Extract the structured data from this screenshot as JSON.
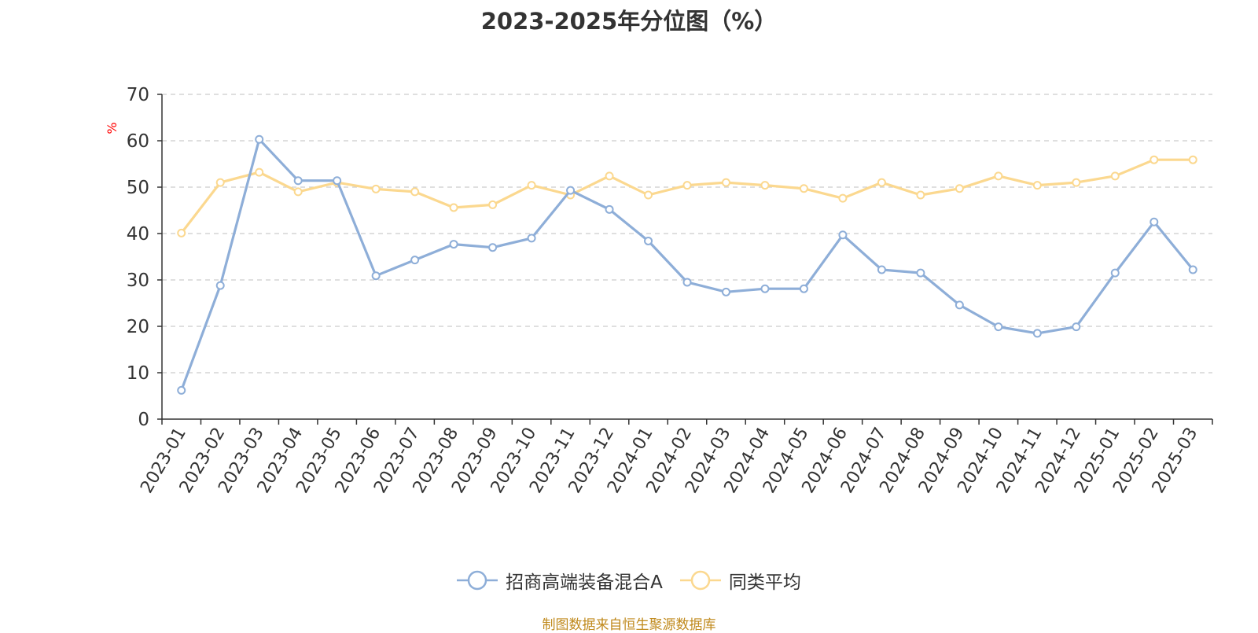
{
  "chart_data": {
    "type": "line",
    "title": "2023-2025年分位图（%）",
    "ylabel": "%",
    "ylim": [
      0,
      70
    ],
    "yticks": [
      0,
      10,
      20,
      30,
      40,
      50,
      60,
      70
    ],
    "grid": true,
    "legend_position": "bottom-center",
    "categories": [
      "2023-01",
      "2023-02",
      "2023-03",
      "2023-04",
      "2023-05",
      "2023-06",
      "2023-07",
      "2023-08",
      "2023-09",
      "2023-10",
      "2023-11",
      "2023-12",
      "2024-01",
      "2024-02",
      "2024-03",
      "2024-04",
      "2024-05",
      "2024-06",
      "2024-07",
      "2024-08",
      "2024-09",
      "2024-10",
      "2024-11",
      "2024-12",
      "2025-01",
      "2025-02",
      "2025-03"
    ],
    "series": [
      {
        "name": "招商高端装备混合A",
        "color": "#8eaed8",
        "values": [
          6.2,
          28.8,
          60.3,
          51.4,
          51.4,
          30.9,
          34.3,
          37.7,
          37.0,
          39.0,
          49.3,
          45.2,
          38.4,
          29.5,
          27.4,
          28.1,
          28.1,
          39.7,
          32.2,
          31.5,
          24.6,
          19.9,
          18.5,
          19.9,
          31.5,
          42.5,
          32.2
        ]
      },
      {
        "name": "同类平均",
        "color": "#fbd88f",
        "values": [
          40.1,
          51.0,
          53.2,
          49.0,
          51.0,
          49.6,
          49.0,
          45.6,
          46.2,
          50.4,
          48.3,
          52.4,
          48.3,
          50.4,
          51.0,
          50.4,
          49.7,
          47.6,
          51.0,
          48.3,
          49.7,
          52.4,
          50.4,
          51.0,
          52.4,
          55.9,
          55.9
        ]
      }
    ]
  },
  "source": "制图数据来自恒生聚源数据库",
  "colors": {
    "axis": "#333333",
    "grid": "#cccccc",
    "ylabel": "#ff0000",
    "source": "#c08a1d"
  }
}
